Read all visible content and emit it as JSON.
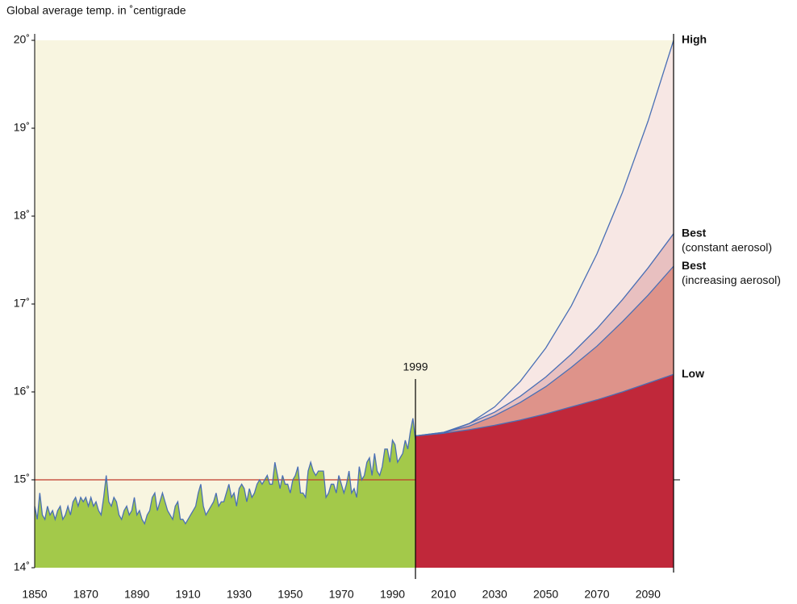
{
  "chart_data": {
    "type": "area",
    "title": "Global average temp. in ˚centigrade",
    "xlim": [
      1850,
      2100
    ],
    "ylim": [
      14,
      20
    ],
    "xticks": [
      1850,
      1870,
      1890,
      1910,
      1930,
      1950,
      1970,
      1990,
      2010,
      2030,
      2050,
      2070,
      2090
    ],
    "yticks": [
      {
        "value": 14,
        "label": "14˚"
      },
      {
        "value": 15,
        "label": "15˚"
      },
      {
        "value": 16,
        "label": "16˚"
      },
      {
        "value": 17,
        "label": "17˚"
      },
      {
        "value": 18,
        "label": "18˚"
      },
      {
        "value": 19,
        "label": "19˚"
      },
      {
        "value": 20,
        "label": "20˚"
      }
    ],
    "plot_background": "#f8f5e0",
    "reference_line": {
      "value": 15,
      "color": "#c0392b"
    },
    "annotations": [
      {
        "text": "1999",
        "x": 1999
      }
    ],
    "series": [
      {
        "color": "#4a6fb5",
        "fill": "#a3c94a",
        "x": [
          1850,
          1851,
          1852,
          1853,
          1854,
          1855,
          1856,
          1857,
          1858,
          1859,
          1860,
          1861,
          1862,
          1863,
          1864,
          1865,
          1866,
          1867,
          1868,
          1869,
          1870,
          1871,
          1872,
          1873,
          1874,
          1875,
          1876,
          1877,
          1878,
          1879,
          1880,
          1881,
          1882,
          1883,
          1884,
          1885,
          1886,
          1887,
          1888,
          1889,
          1890,
          1891,
          1892,
          1893,
          1894,
          1895,
          1896,
          1897,
          1898,
          1899,
          1900,
          1901,
          1902,
          1903,
          1904,
          1905,
          1906,
          1907,
          1908,
          1909,
          1910,
          1911,
          1912,
          1913,
          1914,
          1915,
          1916,
          1917,
          1918,
          1919,
          1920,
          1921,
          1922,
          1923,
          1924,
          1925,
          1926,
          1927,
          1928,
          1929,
          1930,
          1931,
          1932,
          1933,
          1934,
          1935,
          1936,
          1937,
          1938,
          1939,
          1940,
          1941,
          1942,
          1943,
          1944,
          1945,
          1946,
          1947,
          1948,
          1949,
          1950,
          1951,
          1952,
          1953,
          1954,
          1955,
          1956,
          1957,
          1958,
          1959,
          1960,
          1961,
          1962,
          1963,
          1964,
          1965,
          1966,
          1967,
          1968,
          1969,
          1970,
          1971,
          1972,
          1973,
          1974,
          1975,
          1976,
          1977,
          1978,
          1979,
          1980,
          1981,
          1982,
          1983,
          1984,
          1985,
          1986,
          1987,
          1988,
          1989,
          1990,
          1991,
          1992,
          1993,
          1994,
          1995,
          1996,
          1997,
          1998,
          1999
        ],
        "values": [
          14.7,
          14.55,
          14.85,
          14.6,
          14.55,
          14.7,
          14.6,
          14.65,
          14.55,
          14.65,
          14.7,
          14.55,
          14.6,
          14.7,
          14.6,
          14.75,
          14.8,
          14.7,
          14.8,
          14.75,
          14.8,
          14.7,
          14.8,
          14.7,
          14.75,
          14.65,
          14.6,
          14.8,
          15.05,
          14.75,
          14.7,
          14.8,
          14.75,
          14.6,
          14.55,
          14.65,
          14.7,
          14.6,
          14.65,
          14.8,
          14.6,
          14.65,
          14.55,
          14.5,
          14.6,
          14.65,
          14.8,
          14.85,
          14.65,
          14.75,
          14.85,
          14.75,
          14.65,
          14.6,
          14.55,
          14.7,
          14.75,
          14.55,
          14.55,
          14.5,
          14.55,
          14.6,
          14.65,
          14.7,
          14.85,
          14.95,
          14.7,
          14.6,
          14.65,
          14.7,
          14.75,
          14.85,
          14.7,
          14.75,
          14.75,
          14.85,
          14.95,
          14.8,
          14.85,
          14.7,
          14.9,
          14.95,
          14.9,
          14.75,
          14.9,
          14.8,
          14.85,
          14.95,
          15.0,
          14.95,
          15.0,
          15.05,
          14.95,
          14.95,
          15.2,
          15.05,
          14.9,
          15.05,
          14.95,
          14.95,
          14.85,
          15.0,
          15.05,
          15.15,
          14.85,
          14.85,
          14.8,
          15.1,
          15.2,
          15.1,
          15.05,
          15.1,
          15.1,
          15.1,
          14.8,
          14.85,
          14.95,
          14.95,
          14.85,
          15.05,
          14.95,
          14.85,
          14.95,
          15.1,
          14.85,
          14.9,
          14.8,
          15.15,
          15.0,
          15.05,
          15.2,
          15.25,
          15.05,
          15.3,
          15.1,
          15.05,
          15.15,
          15.35,
          15.35,
          15.2,
          15.45,
          15.4,
          15.2,
          15.25,
          15.3,
          15.45,
          15.35,
          15.55,
          15.7,
          15.45
        ]
      },
      {
        "name": "High",
        "color": "#4a6fb5",
        "fill": "#f7e7e4",
        "x": [
          1999,
          2010,
          2020,
          2030,
          2040,
          2050,
          2060,
          2070,
          2080,
          2090,
          2100
        ],
        "values": [
          15.5,
          15.53,
          15.64,
          15.83,
          16.12,
          16.5,
          16.98,
          17.57,
          18.27,
          19.08,
          20.0
        ]
      },
      {
        "name": "Best",
        "note": "(constant aerosol)",
        "color": "#4a6fb5",
        "fill": "#e8c0c0",
        "x": [
          1999,
          2010,
          2020,
          2030,
          2040,
          2050,
          2060,
          2070,
          2080,
          2090,
          2100
        ],
        "values": [
          15.5,
          15.54,
          15.64,
          15.77,
          15.95,
          16.17,
          16.43,
          16.72,
          17.05,
          17.41,
          17.8
        ]
      },
      {
        "name": "Best",
        "note": "(increasing aerosol)",
        "color": "#4a6fb5",
        "fill": "#de938a",
        "x": [
          1999,
          2010,
          2020,
          2030,
          2040,
          2050,
          2060,
          2070,
          2080,
          2090,
          2100
        ],
        "values": [
          15.5,
          15.54,
          15.61,
          15.73,
          15.88,
          16.06,
          16.28,
          16.52,
          16.8,
          17.1,
          17.43
        ]
      },
      {
        "name": "Low",
        "color": "#4a6fb5",
        "fill": "#c0283a",
        "x": [
          1999,
          2010,
          2020,
          2030,
          2040,
          2050,
          2060,
          2070,
          2080,
          2090,
          2100
        ],
        "values": [
          15.5,
          15.53,
          15.57,
          15.62,
          15.68,
          15.75,
          15.83,
          15.91,
          16.0,
          16.1,
          16.2
        ]
      }
    ]
  }
}
